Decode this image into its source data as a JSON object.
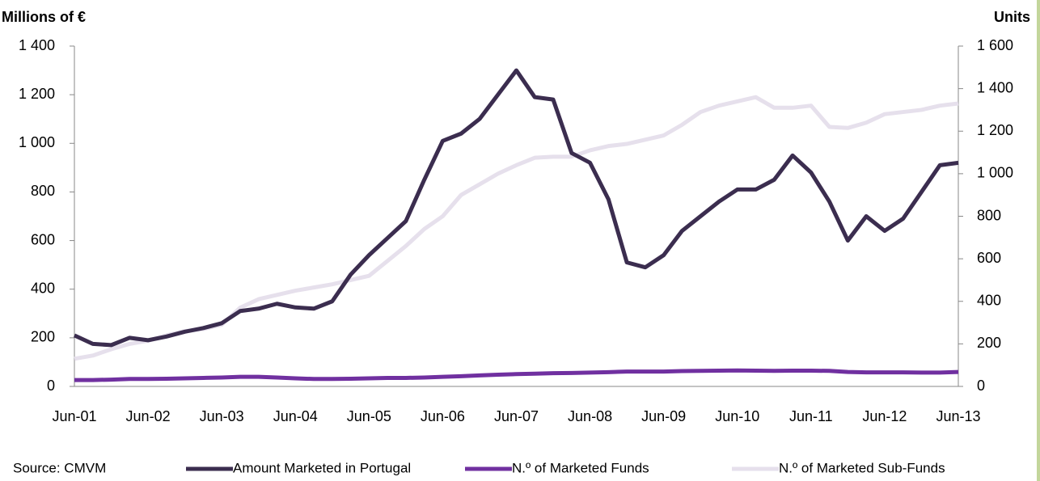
{
  "chart_data": {
    "type": "line",
    "y_label": "Millions of €",
    "y2_label": "Units",
    "source": "Source: CMVM",
    "categories": [
      "Jun-01",
      null,
      null,
      null,
      "Jun-02",
      null,
      null,
      null,
      "Jun-03",
      null,
      null,
      null,
      "Jun-04",
      null,
      null,
      null,
      "Jun-05",
      null,
      null,
      null,
      "Jun-06",
      null,
      null,
      null,
      "Jun-07",
      null,
      null,
      null,
      "Jun-08",
      null,
      null,
      null,
      "Jun-09",
      null,
      null,
      null,
      "Jun-10",
      null,
      null,
      null,
      "Jun-11",
      null,
      null,
      null,
      "Jun-12",
      null,
      null,
      null,
      "Jun-13"
    ],
    "series": [
      {
        "name": "Amount Marketed in Portugal",
        "color": "#3b2d4f",
        "axis": "y",
        "values": [
          210,
          175,
          170,
          200,
          190,
          205,
          225,
          240,
          260,
          310,
          320,
          340,
          325,
          320,
          350,
          460,
          540,
          610,
          680,
          850,
          1010,
          1040,
          1100,
          1200,
          1300,
          1190,
          1180,
          960,
          920,
          770,
          510,
          490,
          540,
          640,
          700,
          760,
          810,
          810,
          850,
          950,
          880,
          760,
          600,
          700,
          640,
          690,
          800,
          910,
          920
        ]
      },
      {
        "name": "N.º of Marketed Funds",
        "color": "#7030a0",
        "axis": "y2",
        "values": [
          30,
          30,
          32,
          35,
          35,
          36,
          38,
          40,
          42,
          45,
          45,
          42,
          38,
          35,
          35,
          36,
          38,
          40,
          40,
          42,
          45,
          48,
          52,
          55,
          58,
          60,
          62,
          63,
          65,
          67,
          70,
          70,
          70,
          72,
          73,
          74,
          75,
          74,
          73,
          74,
          74,
          73,
          68,
          66,
          66,
          66,
          65,
          65,
          68
        ]
      },
      {
        "name": "N.º of Marketed Sub-Funds",
        "color": "#e6e0ec",
        "axis": "y2",
        "values": [
          130,
          145,
          175,
          200,
          215,
          240,
          260,
          270,
          290,
          370,
          410,
          430,
          450,
          465,
          480,
          500,
          520,
          590,
          660,
          740,
          800,
          900,
          950,
          1000,
          1040,
          1075,
          1080,
          1080,
          1110,
          1130,
          1140,
          1160,
          1180,
          1230,
          1290,
          1320,
          1340,
          1360,
          1310,
          1310,
          1320,
          1220,
          1215,
          1240,
          1280,
          1290,
          1300,
          1320,
          1330
        ]
      }
    ],
    "ylim": [
      0,
      1400
    ],
    "yticks": [
      0,
      200,
      400,
      600,
      800,
      {
        "value": 1000,
        "label": "1 000"
      },
      {
        "value": 1200,
        "label": "1 200"
      },
      {
        "value": 1400,
        "label": "1 400"
      }
    ],
    "y2lim": [
      0,
      1600
    ],
    "y2ticks": [
      0,
      200,
      400,
      600,
      800,
      {
        "value": 1000,
        "label": "1 000"
      },
      {
        "value": 1200,
        "label": "1 200"
      },
      {
        "value": 1400,
        "label": "1 400"
      },
      {
        "value": 1600,
        "label": "1 600"
      }
    ],
    "grid": false,
    "legend": "bottom"
  }
}
